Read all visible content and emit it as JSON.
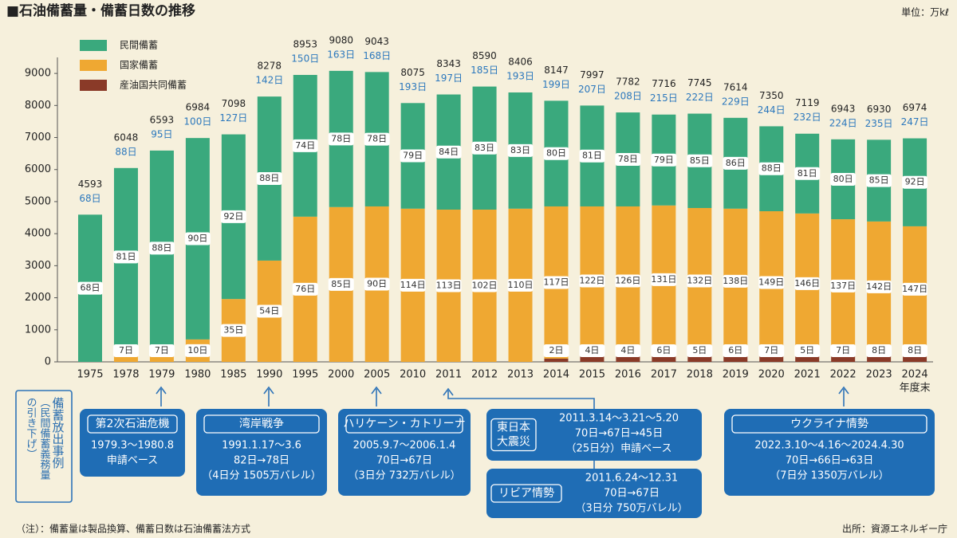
{
  "chart_data": {
    "type": "bar",
    "stacked": true,
    "title": "■石油備蓄量・備蓄日数の推移",
    "unit": "単位：万kℓ",
    "categories": [
      "1975",
      "1978",
      "1979",
      "1980",
      "1985",
      "1990",
      "1995",
      "2000",
      "2005",
      "2010",
      "2011",
      "2012",
      "2013",
      "2014",
      "2015",
      "2016",
      "2017",
      "2018",
      "2019",
      "2020",
      "2021",
      "2022",
      "2023",
      "2024"
    ],
    "x_suffix": "年度末",
    "ylim": [
      0,
      9500
    ],
    "yticks": [
      0,
      1000,
      2000,
      3000,
      4000,
      5000,
      6000,
      7000,
      8000,
      9000
    ],
    "series": [
      {
        "name": "民間備蓄",
        "color": "#3aa97d",
        "values": [
          4593,
          5548,
          6093,
          6284,
          5138,
          5118,
          4423,
          4250,
          4193,
          3295,
          3593,
          3840,
          3626,
          3297,
          3147,
          2932,
          2836,
          2945,
          2834,
          2650,
          2489,
          2493,
          2550,
          2744
        ],
        "day_labels": [
          "68日",
          "81日",
          "88日",
          "90日",
          "92日",
          "88日",
          "74日",
          "78日",
          "78日",
          "79日",
          "84日",
          "83日",
          "83日",
          "80日",
          "81日",
          "78日",
          "79日",
          "85日",
          "86日",
          "88日",
          "81日",
          "80日",
          "85日",
          "92日"
        ]
      },
      {
        "name": "国家備蓄",
        "color": "#efa832",
        "values": [
          null,
          500,
          500,
          700,
          1960,
          3160,
          4530,
          4830,
          4850,
          4780,
          4750,
          4750,
          4780,
          4750,
          4650,
          4650,
          4630,
          4550,
          4530,
          4450,
          4380,
          4170,
          4080,
          3930
        ],
        "day_labels": [
          null,
          "7日",
          "7日",
          "10日",
          "35日",
          "54日",
          "76日",
          "85日",
          "90日",
          "114日",
          "113日",
          "102日",
          "110日",
          "117日",
          "122日",
          "126日",
          "131日",
          "132日",
          "138日",
          "149日",
          "146日",
          "137日",
          "142日",
          "147日"
        ]
      },
      {
        "name": "産油国共同備蓄",
        "color": "#8a3a28",
        "values": [
          null,
          null,
          null,
          null,
          null,
          null,
          null,
          null,
          null,
          null,
          null,
          null,
          null,
          100,
          200,
          200,
          250,
          250,
          250,
          250,
          250,
          280,
          300,
          300
        ],
        "day_labels": [
          null,
          null,
          null,
          null,
          null,
          null,
          null,
          null,
          null,
          null,
          null,
          null,
          null,
          "2日",
          "4日",
          "4日",
          "6日",
          "5日",
          "6日",
          "7日",
          "5日",
          "7日",
          "8日",
          "8日"
        ]
      }
    ],
    "totals": [
      4593,
      6048,
      6593,
      6984,
      7098,
      8278,
      8953,
      9080,
      9043,
      8075,
      8343,
      8590,
      8406,
      8147,
      7997,
      7782,
      7716,
      7745,
      7614,
      7350,
      7119,
      6943,
      6930,
      6974
    ],
    "total_days": [
      "68日",
      "88日",
      "95日",
      "100日",
      "127日",
      "142日",
      "150日",
      "163日",
      "168日",
      "193日",
      "197日",
      "185日",
      "193日",
      "199日",
      "207日",
      "208日",
      "215日",
      "222日",
      "229日",
      "244日",
      "232日",
      "224日",
      "235日",
      "247日"
    ],
    "side_label": [
      "備蓄放出事例",
      "（民間備蓄義務量",
      "の引き下げ）"
    ],
    "annotations": [
      {
        "title": [
          "第2次石油危機"
        ],
        "lines": [
          "1979.3～1980.8",
          "申請ベース"
        ]
      },
      {
        "title": [
          "湾岸戦争"
        ],
        "lines": [
          "1991.1.17～3.6",
          "82日→78日",
          "（4日分 1505万バレル）"
        ]
      },
      {
        "title": [
          "ハリケーン・カトリーナ"
        ],
        "lines": [
          "2005.9.7～2006.1.4",
          "70日→67日",
          "（3日分 732万バレル）"
        ]
      },
      {
        "title": [
          "東日本",
          "大震災"
        ],
        "lines": [
          "2011.3.14～3.21～5.20",
          "70日→67日→45日",
          "（25日分）申請ベース"
        ]
      },
      {
        "title": [
          "リビア情勢"
        ],
        "lines": [
          "2011.6.24～12.31",
          "70日→67日",
          "（3日分 750万バレル）"
        ]
      },
      {
        "title": [
          "ウクライナ情勢"
        ],
        "lines": [
          "2022.3.10～4.16～2024.4.30",
          "70日→66日→63日",
          "（7日分 1350万バレル）"
        ]
      }
    ],
    "note": "（注）：備蓄量は製品換算、備蓄日数は石油備蓄法方式",
    "source": "出所：資源エネルギー庁"
  }
}
